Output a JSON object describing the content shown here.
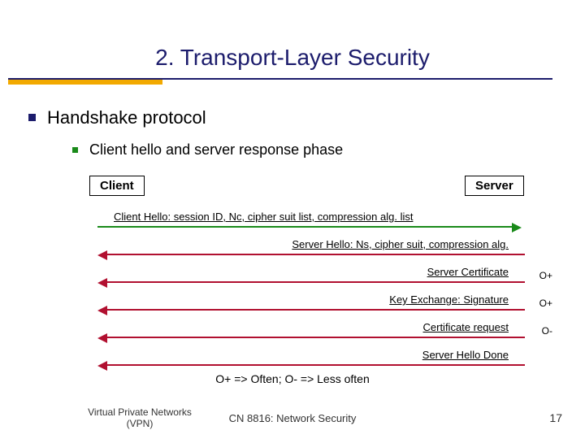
{
  "title": "2. Transport-Layer Security",
  "bullet1": "Handshake protocol",
  "bullet2": "Client hello and server response phase",
  "endpoints": {
    "client": "Client",
    "server": "Server"
  },
  "colors": {
    "title": "#1c1c6c",
    "accent": "#f2a900",
    "bullet1_sq": "#1c1c6c",
    "bullet2_sq": "#1a8a1a",
    "arrow_right": "#1a8a1a",
    "arrow_left": "#b11030",
    "text": "#000000"
  },
  "messages": [
    {
      "dir": "right",
      "label": "Client Hello: session ID, Nc, cipher suit list, compression alg. list",
      "align_right": false,
      "note": ""
    },
    {
      "dir": "left",
      "label": "Server Hello:  Ns, cipher suit, compression alg.",
      "align_right": true,
      "note": ""
    },
    {
      "dir": "left",
      "label": "Server Certificate",
      "align_right": true,
      "note": "O+"
    },
    {
      "dir": "left",
      "label": "Key Exchange: Signature",
      "align_right": true,
      "note": "O+"
    },
    {
      "dir": "left",
      "label": "Certificate request",
      "align_right": true,
      "note": "O-"
    },
    {
      "dir": "left",
      "label": "Server Hello Done",
      "align_right": true,
      "note": ""
    }
  ],
  "legend": "O+ => Often;  O- => Less often",
  "footer": {
    "left": "Virtual Private Networks (VPN)",
    "mid": "CN 8816: Network Security",
    "page": "17"
  },
  "arrow": {
    "line_width": 2,
    "head_size": 6
  }
}
